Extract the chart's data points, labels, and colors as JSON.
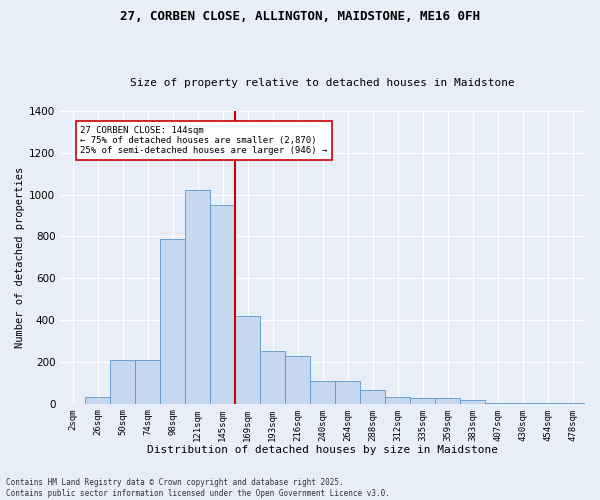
{
  "title1": "27, CORBEN CLOSE, ALLINGTON, MAIDSTONE, ME16 0FH",
  "title2": "Size of property relative to detached houses in Maidstone",
  "xlabel": "Distribution of detached houses by size in Maidstone",
  "ylabel": "Number of detached properties",
  "bar_labels": [
    "2sqm",
    "26sqm",
    "50sqm",
    "74sqm",
    "98sqm",
    "121sqm",
    "145sqm",
    "169sqm",
    "193sqm",
    "216sqm",
    "240sqm",
    "264sqm",
    "288sqm",
    "312sqm",
    "335sqm",
    "359sqm",
    "383sqm",
    "407sqm",
    "430sqm",
    "454sqm",
    "478sqm"
  ],
  "bar_heights": [
    0,
    30,
    210,
    210,
    790,
    1020,
    950,
    420,
    250,
    230,
    110,
    110,
    65,
    30,
    25,
    25,
    20,
    5,
    5,
    5,
    5
  ],
  "bar_color": "#c5d8f0",
  "bar_edge_color": "#5a96cc",
  "bg_color": "#e8eef8",
  "grid_color": "#ffffff",
  "vline_color": "#cc0000",
  "vline_pos": 6.5,
  "annotation_text": "27 CORBEN CLOSE: 144sqm\n← 75% of detached houses are smaller (2,870)\n25% of semi-detached houses are larger (946) →",
  "footnote1": "Contains HM Land Registry data © Crown copyright and database right 2025.",
  "footnote2": "Contains public sector information licensed under the Open Government Licence v3.0.",
  "ylim": [
    0,
    1400
  ],
  "yticks": [
    0,
    200,
    400,
    600,
    800,
    1000,
    1200,
    1400
  ]
}
